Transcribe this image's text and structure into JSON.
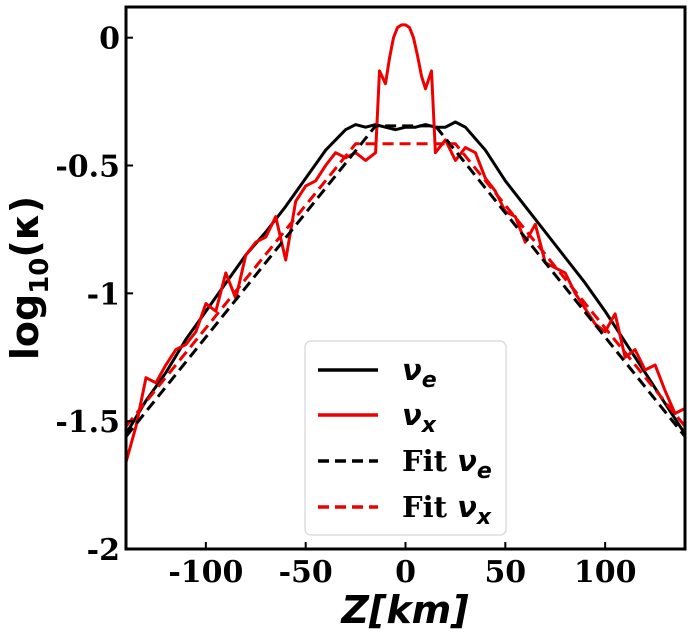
{
  "chart_data": {
    "type": "line",
    "xlabel_italic": "Z",
    "xlabel_bracket": "[km]",
    "ylabel_main": "log",
    "ylabel_sub": "10",
    "ylabel_arg": "(κ)",
    "xlim": [
      -140,
      140
    ],
    "ylim": [
      -2,
      0.12
    ],
    "x_ticks": [
      -100,
      -50,
      0,
      50,
      100
    ],
    "x_tick_labels": [
      "-100",
      "-50",
      "0",
      "50",
      "100"
    ],
    "y_ticks": [
      0,
      -0.5,
      -1,
      -1.5,
      -2
    ],
    "y_tick_labels": [
      "0",
      "-0.5",
      "-1",
      "-1.5",
      "-2"
    ],
    "grid": false,
    "legend_position": "bottom-center",
    "series": [
      {
        "name": "νe",
        "legend_prefix": "",
        "legend_symbol": "ν",
        "legend_sub": "e",
        "color": "#000000",
        "style": "solid",
        "x": [
          -140,
          -130,
          -120,
          -110,
          -100,
          -90,
          -80,
          -70,
          -60,
          -50,
          -40,
          -30,
          -25,
          -20,
          -15,
          -10,
          -5,
          0,
          5,
          10,
          15,
          20,
          25,
          30,
          40,
          50,
          60,
          70,
          80,
          90,
          100,
          110,
          120,
          130,
          140
        ],
        "y": [
          -1.55,
          -1.42,
          -1.31,
          -1.18,
          -1.07,
          -0.96,
          -0.85,
          -0.76,
          -0.66,
          -0.55,
          -0.44,
          -0.36,
          -0.34,
          -0.35,
          -0.34,
          -0.35,
          -0.36,
          -0.35,
          -0.35,
          -0.34,
          -0.35,
          -0.35,
          -0.33,
          -0.35,
          -0.44,
          -0.56,
          -0.66,
          -0.76,
          -0.86,
          -0.96,
          -1.07,
          -1.19,
          -1.31,
          -1.43,
          -1.55
        ]
      },
      {
        "name": "νx",
        "legend_prefix": "",
        "legend_symbol": "ν",
        "legend_sub": "x",
        "color": "#ee0000",
        "style": "solid",
        "x": [
          -140,
          -135,
          -130,
          -125,
          -120,
          -115,
          -110,
          -105,
          -100,
          -95,
          -90,
          -85,
          -80,
          -75,
          -70,
          -65,
          -60,
          -55,
          -50,
          -45,
          -40,
          -35,
          -30,
          -25,
          -20,
          -15,
          -13,
          -10,
          -8,
          -6,
          -4,
          -2,
          0,
          2,
          4,
          6,
          8,
          10,
          13,
          15,
          20,
          25,
          30,
          35,
          40,
          45,
          50,
          55,
          60,
          65,
          70,
          75,
          80,
          85,
          90,
          95,
          100,
          105,
          110,
          115,
          120,
          125,
          130,
          135,
          140
        ],
        "y": [
          -1.66,
          -1.52,
          -1.33,
          -1.35,
          -1.28,
          -1.22,
          -1.2,
          -1.15,
          -1.04,
          -1.07,
          -0.92,
          -1.02,
          -0.85,
          -0.8,
          -0.78,
          -0.7,
          -0.87,
          -0.64,
          -0.58,
          -0.56,
          -0.5,
          -0.45,
          -0.47,
          -0.45,
          -0.48,
          -0.45,
          -0.13,
          -0.18,
          -0.08,
          0.0,
          0.04,
          0.05,
          0.05,
          0.04,
          0.0,
          -0.07,
          -0.15,
          -0.2,
          -0.13,
          -0.45,
          -0.4,
          -0.48,
          -0.43,
          -0.45,
          -0.55,
          -0.6,
          -0.68,
          -0.7,
          -0.8,
          -0.73,
          -0.88,
          -0.9,
          -0.92,
          -1.0,
          -1.06,
          -1.12,
          -1.15,
          -1.08,
          -1.25,
          -1.22,
          -1.3,
          -1.28,
          -1.38,
          -1.47,
          -1.45
        ]
      },
      {
        "name": "Fit νe",
        "legend_prefix": "Fit ",
        "legend_symbol": "ν",
        "legend_sub": "e",
        "color": "#000000",
        "style": "dashed",
        "x": [
          -140,
          -15,
          15,
          140
        ],
        "y": [
          -1.56,
          -0.345,
          -0.345,
          -1.56
        ]
      },
      {
        "name": "Fit νx",
        "legend_prefix": "Fit ",
        "legend_symbol": "ν",
        "legend_sub": "x",
        "color": "#ee0000",
        "style": "dashed",
        "x": [
          -140,
          -25,
          25,
          140
        ],
        "y": [
          -1.52,
          -0.415,
          -0.415,
          -1.52
        ]
      }
    ]
  }
}
